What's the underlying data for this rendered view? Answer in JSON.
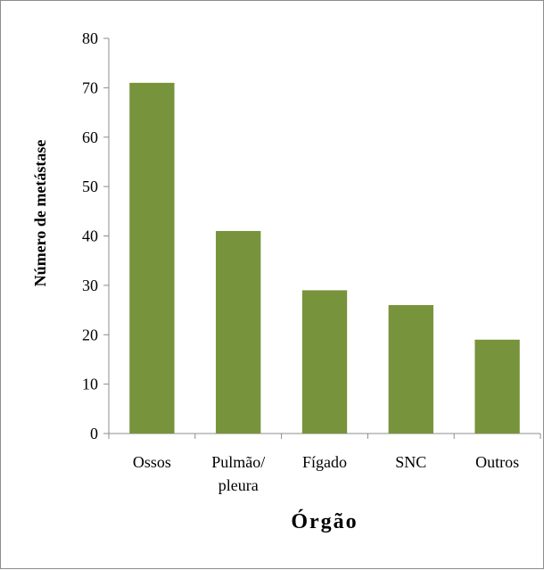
{
  "chart_data": {
    "type": "bar",
    "title": "",
    "xlabel": "Órgão",
    "ylabel": "Número de metástase",
    "categories": [
      "Ossos",
      "Pulmão/\npleura",
      "Fígado",
      "SNC",
      "Outros"
    ],
    "values": [
      71,
      41,
      29,
      26,
      19
    ],
    "ylim": [
      0,
      80
    ],
    "yticks": [
      "0",
      "10",
      "20",
      "30",
      "40",
      "50",
      "60",
      "70",
      "80"
    ],
    "grid": false,
    "legend": "none",
    "bar_color": "#77933c"
  }
}
